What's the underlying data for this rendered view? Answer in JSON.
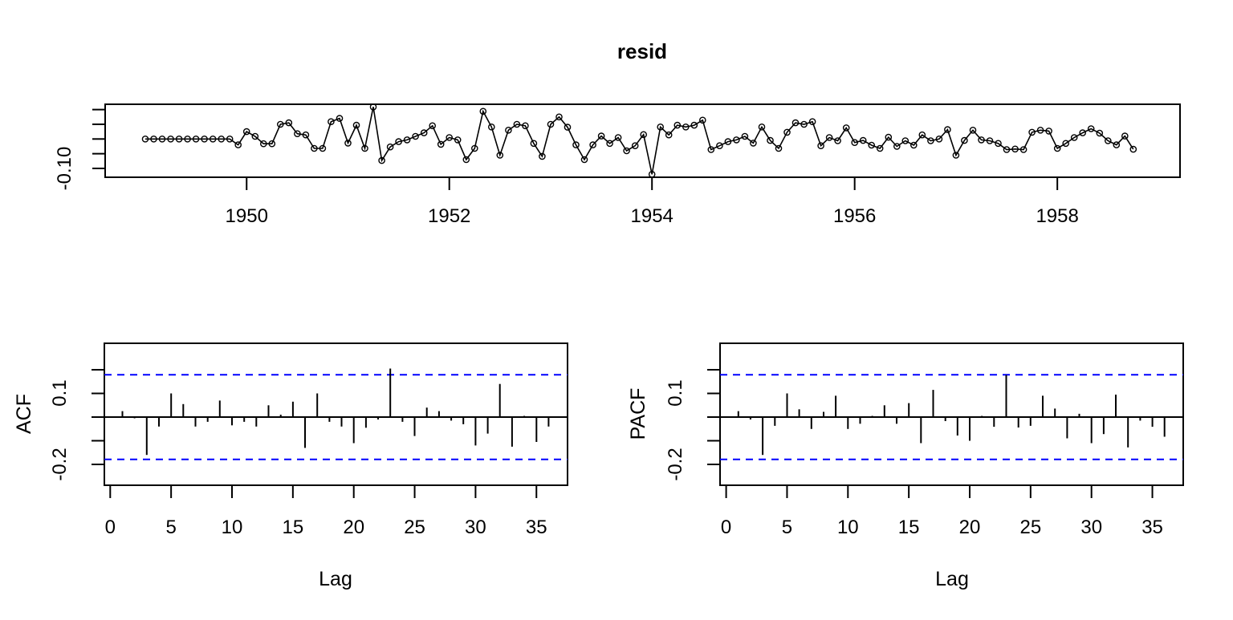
{
  "colors": {
    "foreground": "#000000",
    "background": "#FFFFFF",
    "confidence_line": "#0000FF"
  },
  "chart_data": [
    {
      "id": "resid",
      "type": "line",
      "title": "resid",
      "series_name": "resid",
      "frequency": "monthly",
      "x_start": "1949-01",
      "x_end": "1958-10",
      "x_ticks": [
        1950,
        1952,
        1954,
        1956,
        1958
      ],
      "x_tick_labels": [
        "1950",
        "1952",
        "1954",
        "1956",
        "1958"
      ],
      "y_ticks": [
        0.1,
        0.05,
        0.0,
        -0.05,
        -0.1
      ],
      "y_tick_labels": [
        "",
        "",
        "",
        "",
        "-0.10"
      ],
      "ylim": [
        -0.13,
        0.116
      ],
      "point_marker": "open-circle",
      "values": [
        0,
        0,
        0,
        0,
        0,
        0,
        0,
        0,
        0,
        0,
        0,
        -0.02,
        0.025,
        0.009,
        -0.016,
        -0.016,
        0.05,
        0.055,
        0.018,
        0.014,
        -0.032,
        -0.032,
        0.059,
        0.07,
        -0.014,
        0.047,
        -0.032,
        0.109,
        -0.073,
        -0.027,
        -0.009,
        -0.003,
        0.009,
        0.021,
        0.045,
        -0.018,
        0.005,
        -0.003,
        -0.07,
        -0.032,
        0.094,
        0.041,
        -0.055,
        0.03,
        0.05,
        0.045,
        -0.015,
        -0.059,
        0.05,
        0.075,
        0.04,
        -0.02,
        -0.07,
        -0.02,
        0.01,
        -0.015,
        0.005,
        -0.04,
        -0.023,
        0.015,
        -0.12,
        0.041,
        0.014,
        0.047,
        0.041,
        0.047,
        0.064,
        -0.036,
        -0.023,
        -0.009,
        -0.003,
        0.009,
        -0.014,
        0.041,
        -0.005,
        -0.032,
        0.023,
        0.055,
        0.05,
        0.059,
        -0.023,
        0.005,
        -0.006,
        0.038,
        -0.012,
        -0.005,
        -0.021,
        -0.032,
        0.006,
        -0.025,
        -0.006,
        -0.021,
        0.014,
        -0.006,
        0,
        0.032,
        -0.055,
        -0.005,
        0.03,
        -0.003,
        -0.006,
        -0.015,
        -0.036,
        -0.034,
        -0.036,
        0.023,
        0.03,
        0.027,
        -0.032,
        -0.015,
        0.005,
        0.021,
        0.035,
        0.02,
        -0.006,
        -0.02,
        0.01,
        -0.035
      ]
    },
    {
      "id": "acf",
      "type": "bar",
      "ylabel": "ACF",
      "xlabel": "Lag",
      "lag_start": 1,
      "x_ticks": [
        0,
        5,
        10,
        15,
        20,
        25,
        30,
        35
      ],
      "x_tick_labels": [
        "0",
        "5",
        "10",
        "15",
        "20",
        "25",
        "30",
        "35"
      ],
      "y_ticks": [
        0.2,
        0.1,
        0,
        -0.1,
        -0.2
      ],
      "y_tick_labels": [
        "",
        "0.1",
        "",
        "",
        "-0.2"
      ],
      "ylim": [
        -0.29,
        0.31
      ],
      "confidence_bands": [
        0.179,
        -0.179
      ],
      "values": [
        0.025,
        -0.005,
        -0.16,
        -0.04,
        0.1,
        0.055,
        -0.04,
        -0.02,
        0.07,
        -0.035,
        -0.02,
        -0.04,
        0.05,
        0.01,
        0.065,
        -0.13,
        0.1,
        -0.02,
        -0.04,
        -0.11,
        -0.045,
        -0.01,
        0.205,
        -0.02,
        -0.08,
        0.04,
        0.025,
        -0.015,
        -0.03,
        -0.12,
        -0.07,
        0.14,
        -0.125,
        0.005,
        -0.105,
        -0.04
      ]
    },
    {
      "id": "pacf",
      "type": "bar",
      "ylabel": "PACF",
      "xlabel": "Lag",
      "lag_start": 1,
      "x_ticks": [
        0,
        5,
        10,
        15,
        20,
        25,
        30,
        35
      ],
      "x_tick_labels": [
        "0",
        "5",
        "10",
        "15",
        "20",
        "25",
        "30",
        "35"
      ],
      "y_ticks": [
        0.2,
        0.1,
        0,
        -0.1,
        -0.2
      ],
      "y_tick_labels": [
        "",
        "0.1",
        "",
        "",
        "-0.2"
      ],
      "ylim": [
        -0.29,
        0.31
      ],
      "confidence_bands": [
        0.179,
        -0.179
      ],
      "values": [
        0.025,
        -0.01,
        -0.16,
        -0.037,
        0.1,
        0.033,
        -0.05,
        0.022,
        0.09,
        -0.05,
        -0.028,
        0.005,
        0.05,
        -0.028,
        0.059,
        -0.11,
        0.115,
        -0.017,
        -0.078,
        -0.1,
        0.005,
        -0.041,
        0.178,
        -0.044,
        -0.037,
        0.09,
        0.036,
        -0.09,
        0.014,
        -0.11,
        -0.072,
        0.095,
        -0.128,
        -0.015,
        -0.041,
        -0.083
      ]
    }
  ]
}
